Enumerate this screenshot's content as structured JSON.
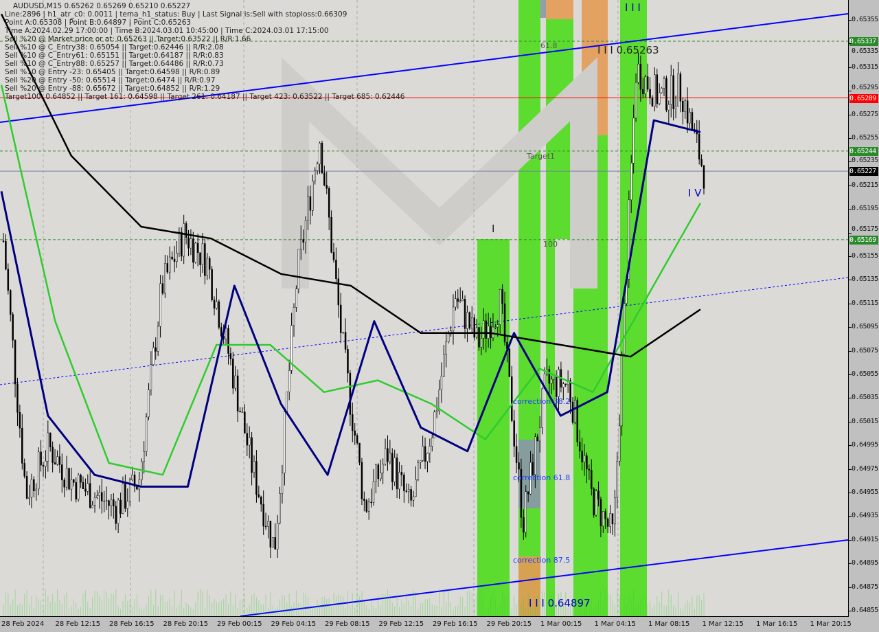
{
  "header": {
    "title": "AUDUSD,M15  0.65262 0.65269 0.65210 0.65227",
    "lines": [
      "Line:2896 | h1_atr_c0: 0.0011 | tema_h1_status: Buy | Last Signal is:Sell with stoploss:0.66309",
      "Point A:0.65308 | Point B:0.64897 | Point C:0.65263",
      "Time A:2024.02.29 17:00:00 | Time B:2024.03.01 10:45:00 | Time C:2024.03.01 17:15:00",
      "Sell %20 @ Market price or at: 0.65263 || Target:0.63522 || R/R:1.66",
      "Sell %10 @ C_Entry38: 0.65054 || Target:0.62446 || R/R:2.08",
      "Sell %10 @ C_Entry61: 0.65151 || Target:0.64187 || R/R:0.83",
      "Sell %10 @ C_Entry88: 0.65257 || Target:0.64486 || R/R:0.73",
      "Sell %10 @ Entry -23: 0.65405 || Target:0.64598 || R/R:0.89",
      "Sell %20 @ Entry -50: 0.65514 || Target:0.6474 || R/R:0.97",
      "Sell %20 @ Entry -88: 0.65672 || Target:0.64852 || R/R:1.29",
      "Target100: 0.64852 || Target 161: 0.64598 || Target 261: 0.64187 || Target 423: 0.63522 || Target 685: 0.62446"
    ]
  },
  "chart_data": {
    "type": "candlestick",
    "symbol": "AUDUSD",
    "timeframe": "M15",
    "ylim": [
      0.64845,
      0.65365
    ],
    "y_ticks": [
      "0.65355",
      "0.65335",
      "0.65315",
      "0.65295",
      "0.65275",
      "0.65255",
      "0.65235",
      "0.65215",
      "0.65195",
      "0.65175",
      "0.65155",
      "0.65135",
      "0.65115",
      "0.65095",
      "0.65075",
      "0.65055",
      "0.65035",
      "0.65015",
      "0.64995",
      "0.64975",
      "0.64955",
      "0.64935",
      "0.64915",
      "0.64895",
      "0.64875",
      "0.64855"
    ],
    "x_ticks": [
      "28 Feb 2024",
      "28 Feb 12:15",
      "28 Feb 16:15",
      "28 Feb 20:15",
      "29 Feb 00:15",
      "29 Feb 04:15",
      "29 Feb 08:15",
      "29 Feb 12:15",
      "29 Feb 16:15",
      "29 Feb 20:15",
      "1 Mar 00:15",
      "1 Mar 04:15",
      "1 Mar 08:15",
      "1 Mar 12:15",
      "1 Mar 16:15",
      "1 Mar 20:15"
    ],
    "price_path": [
      0.65168,
      0.64953,
      0.64994,
      0.64965,
      0.64953,
      0.64942,
      0.64965,
      0.65128,
      0.65174,
      0.65151,
      0.6507,
      0.64977,
      0.64907,
      0.6514,
      0.65256,
      0.65081,
      0.64942,
      0.64988,
      0.64942,
      0.65011,
      0.65122,
      0.65081,
      0.65116,
      0.6493,
      0.65047,
      0.65047,
      0.64953,
      0.64918,
      0.65314,
      0.6529,
      0.65296,
      0.65227
    ],
    "ma_black": [
      0.6536,
      0.6524,
      0.6518,
      0.6517,
      0.6514,
      0.6513,
      0.6509,
      0.6509,
      0.6508,
      0.6507,
      0.6511
    ],
    "ma_navy": [
      0.6521,
      0.6502,
      0.6497,
      0.6496,
      0.6496,
      0.6513,
      0.6503,
      0.6497,
      0.651,
      0.6501,
      0.6499,
      0.6509,
      0.6502,
      0.6504,
      0.6527,
      0.6526
    ],
    "ma_green": [
      0.653,
      0.651,
      0.6498,
      0.6497,
      0.6508,
      0.6508,
      0.6504,
      0.6505,
      0.6503,
      0.65,
      0.6506,
      0.6504,
      0.6512,
      0.652
    ],
    "levels": [
      {
        "price": "0.65337",
        "color": "#2a8a2a",
        "style": "dashed"
      },
      {
        "price": "0.65289",
        "color": "#ff0000",
        "style": "solid"
      },
      {
        "price": "0.65244",
        "color": "#2a8a2a",
        "style": "dashed"
      },
      {
        "price": "0.65227",
        "color": "#000000",
        "style": "current"
      },
      {
        "price": "0.65169",
        "color": "#2a8a2a",
        "style": "dashed"
      }
    ],
    "annotations": {
      "fib618": "61.8",
      "target1": "Target1",
      "fib100": "100",
      "corr382": "correction 38.2",
      "corr618": "correction 61.8",
      "corr875": "correction 87.5",
      "pointA": "I I I 0.65263",
      "pointB": "I I I 0.64897",
      "marks_top": "I I I",
      "mark_iv": "I V",
      "mark_i": "I"
    },
    "colors": {
      "up_zone": "#4fdc1e",
      "sell_zone": "#e39a55",
      "channel": "#0000ff",
      "ma_black": "#000000",
      "ma_navy": "#000080",
      "ma_green": "#2ecc2e"
    }
  }
}
